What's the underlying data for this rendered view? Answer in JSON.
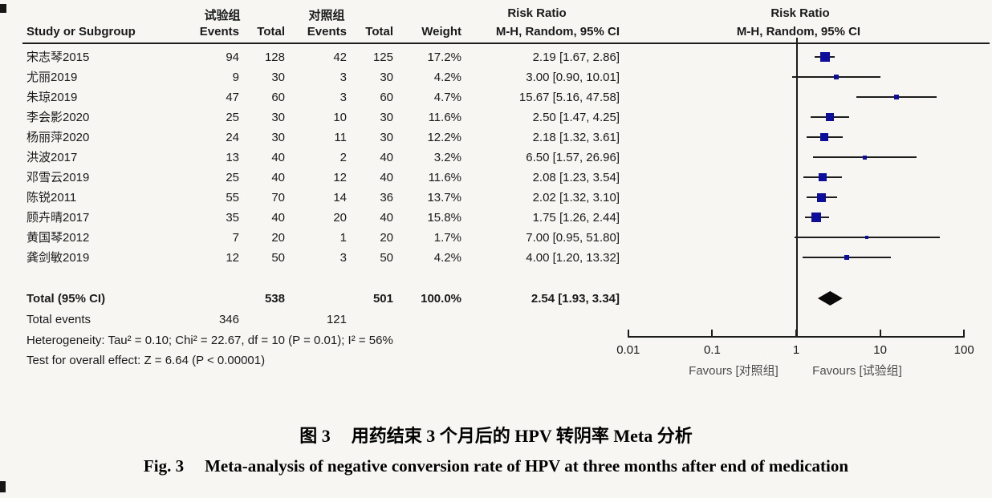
{
  "header": {
    "group1": "试验组",
    "group2": "对照组",
    "col_study": "Study or Subgroup",
    "col_events": "Events",
    "col_total": "Total",
    "col_weight": "Weight",
    "risk_ratio": "Risk Ratio",
    "method": "M-H, Random, 95% CI"
  },
  "chart_data": {
    "type": "forest",
    "effect_measure": "Risk Ratio",
    "model": "M-H, Random, 95% CI",
    "x_axis": {
      "scale": "log",
      "ticks": [
        "0.01",
        "0.1",
        "1",
        "10",
        "100"
      ],
      "tick_values": [
        0.01,
        0.1,
        1,
        10,
        100
      ]
    },
    "studies": [
      {
        "name": "宋志琴2015",
        "events1": "94",
        "total1": "128",
        "events2": "42",
        "total2": "125",
        "weight": "17.2%",
        "weight_val": 17.2,
        "rr": 2.19,
        "lo": 1.67,
        "hi": 2.86,
        "ci_text": "2.19 [1.67, 2.86]"
      },
      {
        "name": "尤丽2019",
        "events1": "9",
        "total1": "30",
        "events2": "3",
        "total2": "30",
        "weight": "4.2%",
        "weight_val": 4.2,
        "rr": 3.0,
        "lo": 0.9,
        "hi": 10.01,
        "ci_text": "3.00 [0.90, 10.01]"
      },
      {
        "name": "朱琼2019",
        "events1": "47",
        "total1": "60",
        "events2": "3",
        "total2": "60",
        "weight": "4.7%",
        "weight_val": 4.7,
        "rr": 15.67,
        "lo": 5.16,
        "hi": 47.58,
        "ci_text": "15.67 [5.16, 47.58]"
      },
      {
        "name": "李会影2020",
        "events1": "25",
        "total1": "30",
        "events2": "10",
        "total2": "30",
        "weight": "11.6%",
        "weight_val": 11.6,
        "rr": 2.5,
        "lo": 1.47,
        "hi": 4.25,
        "ci_text": "2.50 [1.47, 4.25]"
      },
      {
        "name": "杨丽萍2020",
        "events1": "24",
        "total1": "30",
        "events2": "11",
        "total2": "30",
        "weight": "12.2%",
        "weight_val": 12.2,
        "rr": 2.18,
        "lo": 1.32,
        "hi": 3.61,
        "ci_text": "2.18 [1.32, 3.61]"
      },
      {
        "name": "洪波2017",
        "events1": "13",
        "total1": "40",
        "events2": "2",
        "total2": "40",
        "weight": "3.2%",
        "weight_val": 3.2,
        "rr": 6.5,
        "lo": 1.57,
        "hi": 26.96,
        "ci_text": "6.50 [1.57, 26.96]"
      },
      {
        "name": "邓雪云2019",
        "events1": "25",
        "total1": "40",
        "events2": "12",
        "total2": "40",
        "weight": "11.6%",
        "weight_val": 11.6,
        "rr": 2.08,
        "lo": 1.23,
        "hi": 3.54,
        "ci_text": "2.08 [1.23, 3.54]"
      },
      {
        "name": "陈锐2011",
        "events1": "55",
        "total1": "70",
        "events2": "14",
        "total2": "36",
        "weight": "13.7%",
        "weight_val": 13.7,
        "rr": 2.02,
        "lo": 1.32,
        "hi": 3.1,
        "ci_text": "2.02 [1.32, 3.10]"
      },
      {
        "name": "顾卉晴2017",
        "events1": "35",
        "total1": "40",
        "events2": "20",
        "total2": "40",
        "weight": "15.8%",
        "weight_val": 15.8,
        "rr": 1.75,
        "lo": 1.26,
        "hi": 2.44,
        "ci_text": "1.75 [1.26, 2.44]"
      },
      {
        "name": "黄国琴2012",
        "events1": "7",
        "total1": "20",
        "events2": "1",
        "total2": "20",
        "weight": "1.7%",
        "weight_val": 1.7,
        "rr": 7.0,
        "lo": 0.95,
        "hi": 51.8,
        "ci_text": "7.00 [0.95, 51.80]"
      },
      {
        "name": "龚剑敏2019",
        "events1": "12",
        "total1": "50",
        "events2": "3",
        "total2": "50",
        "weight": "4.2%",
        "weight_val": 4.2,
        "rr": 4.0,
        "lo": 1.2,
        "hi": 13.32,
        "ci_text": "4.00 [1.20, 13.32]"
      }
    ],
    "total": {
      "label": "Total (95% CI)",
      "total1": "538",
      "total2": "501",
      "weight": "100.0%",
      "rr": 2.54,
      "lo": 1.93,
      "hi": 3.34,
      "ci_text": "2.54 [1.93, 3.34]"
    },
    "total_events": {
      "label": "Total events",
      "events1": "346",
      "events2": "121"
    },
    "heterogeneity": "Heterogeneity: Tau² = 0.10; Chi² = 22.67, df = 10 (P = 0.01); I² = 56%",
    "overall_effect": "Test for overall effect: Z = 6.64 (P < 0.00001)",
    "favours_left": "Favours [对照组]",
    "favours_right": "Favours [试验组]"
  },
  "caption": {
    "zh_label": "图 3",
    "zh_text": "用药结束 3 个月后的 HPV 转阴率 Meta 分析",
    "en_label": "Fig. 3",
    "en_text": "Meta-analysis of negative conversion rate of HPV at three months after end of medication"
  },
  "colors": {
    "marker": "#0e0e9c",
    "diamond": "#0a0a0a",
    "line": "#1c1c1c"
  }
}
